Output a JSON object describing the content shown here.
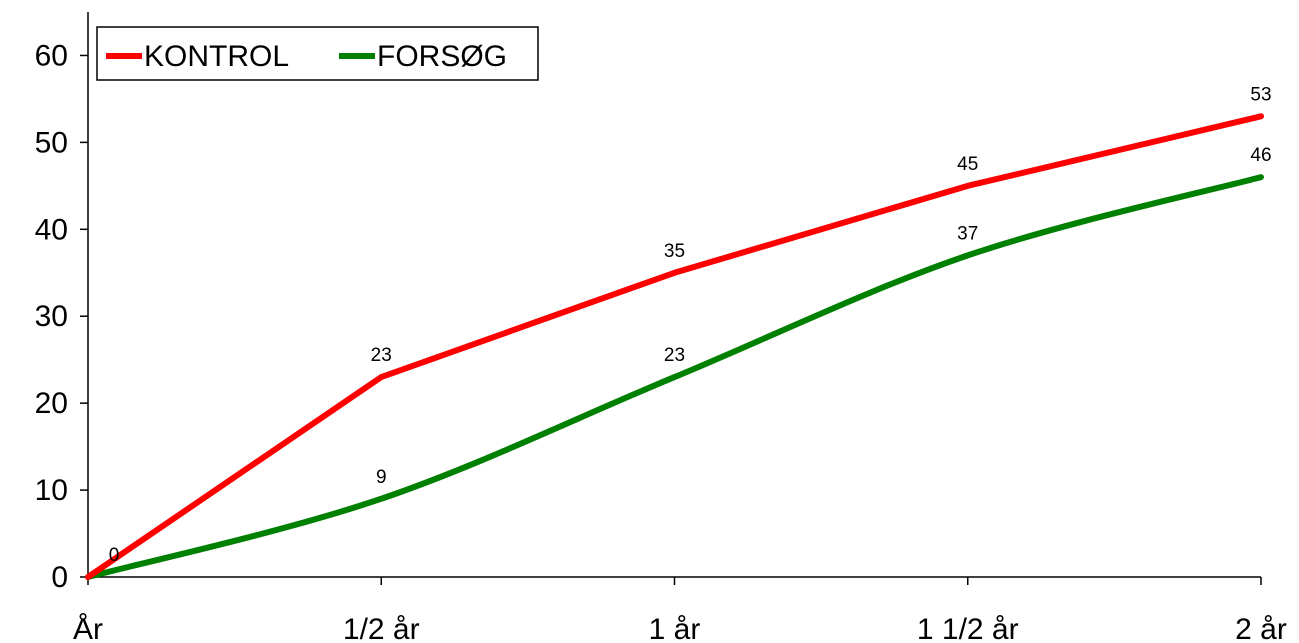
{
  "chart_data": {
    "type": "line",
    "categories": [
      "År",
      "1/2 år",
      "1 år",
      "1 1/2 år",
      "2 år"
    ],
    "series": [
      {
        "name": "KONTROL",
        "values": [
          0,
          23,
          35,
          45,
          53
        ],
        "color": "#ff0000",
        "smooth": false
      },
      {
        "name": "FORSØG",
        "values": [
          0,
          9,
          23,
          37,
          46
        ],
        "color": "#008000",
        "smooth": true
      }
    ],
    "y_ticks": [
      "0",
      "10",
      "20",
      "30",
      "40",
      "50",
      "60"
    ],
    "ylim": [
      0,
      65
    ],
    "grid": false,
    "legend": "top-left"
  }
}
